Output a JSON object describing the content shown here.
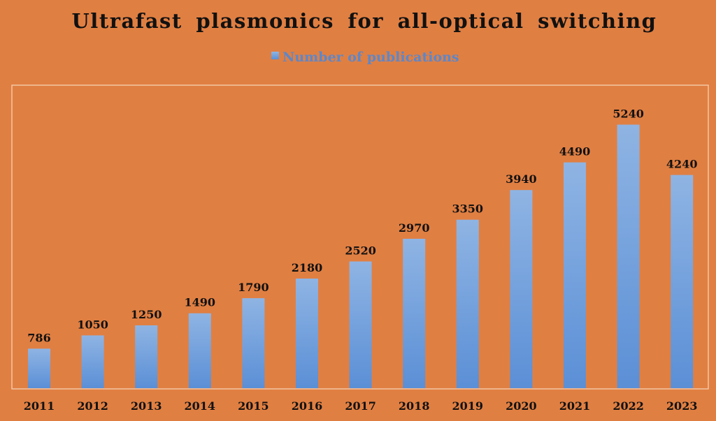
{
  "chart_data": {
    "type": "bar",
    "title": "Ultrafast plasmonics for all-optical switching",
    "categories": [
      "2011",
      "2012",
      "2013",
      "2014",
      "2015",
      "2016",
      "2017",
      "2018",
      "2019",
      "2020",
      "2021",
      "2022",
      "2023"
    ],
    "series": [
      {
        "name": "Number of publications",
        "values": [
          786,
          1050,
          1250,
          1490,
          1790,
          2180,
          2520,
          2970,
          3350,
          3940,
          4490,
          5240,
          4240
        ]
      }
    ],
    "xlabel": "",
    "ylabel": "",
    "ylim": [
      0,
      5400
    ],
    "grid": false,
    "legend": "top-center",
    "colors": {
      "background": "#e07f42",
      "bar_top": "#8fb4e3",
      "bar_bottom": "#5b8fd6",
      "legend_text": "#5d87c9",
      "plot_border": "#f3c7a4"
    }
  }
}
